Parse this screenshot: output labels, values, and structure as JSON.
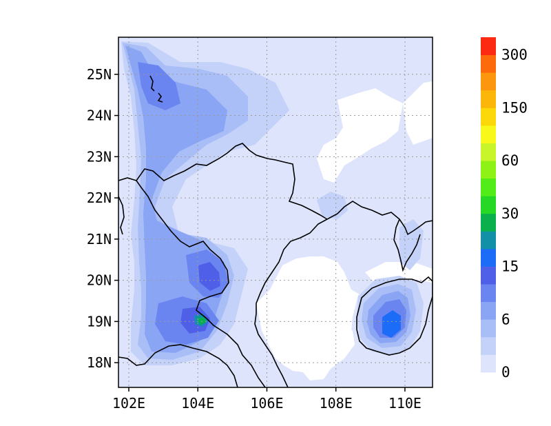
{
  "map": {
    "lon_range": [
      101.7,
      110.8
    ],
    "lat_range": [
      17.4,
      25.9
    ],
    "lat_labels": [
      "18N",
      "19N",
      "20N",
      "21N",
      "22N",
      "23N",
      "24N",
      "25N"
    ],
    "lon_labels": [
      "102E",
      "104E",
      "106E",
      "108E",
      "110E"
    ],
    "lat_values": [
      18,
      19,
      20,
      21,
      22,
      23,
      24,
      25
    ],
    "lon_values": [
      102,
      104,
      106,
      108,
      110
    ],
    "grid": "dotted",
    "coastline_color": "#000000"
  },
  "colorbar": {
    "colors": [
      "#dde4fb",
      "#c4d2f9",
      "#a9bef7",
      "#8aa5f4",
      "#6b85f0",
      "#4f5fe8",
      "#1d6cf8",
      "#1190a8",
      "#0ab04c",
      "#26d826",
      "#52ec18",
      "#8ef216",
      "#c8f42a",
      "#f8f81a",
      "#fcd80a",
      "#fcb60a",
      "#fc960e",
      "#fc6a0c",
      "#fc2a12"
    ],
    "labels": [
      "0",
      "6",
      "15",
      "30",
      "60",
      "150",
      "300"
    ]
  }
}
